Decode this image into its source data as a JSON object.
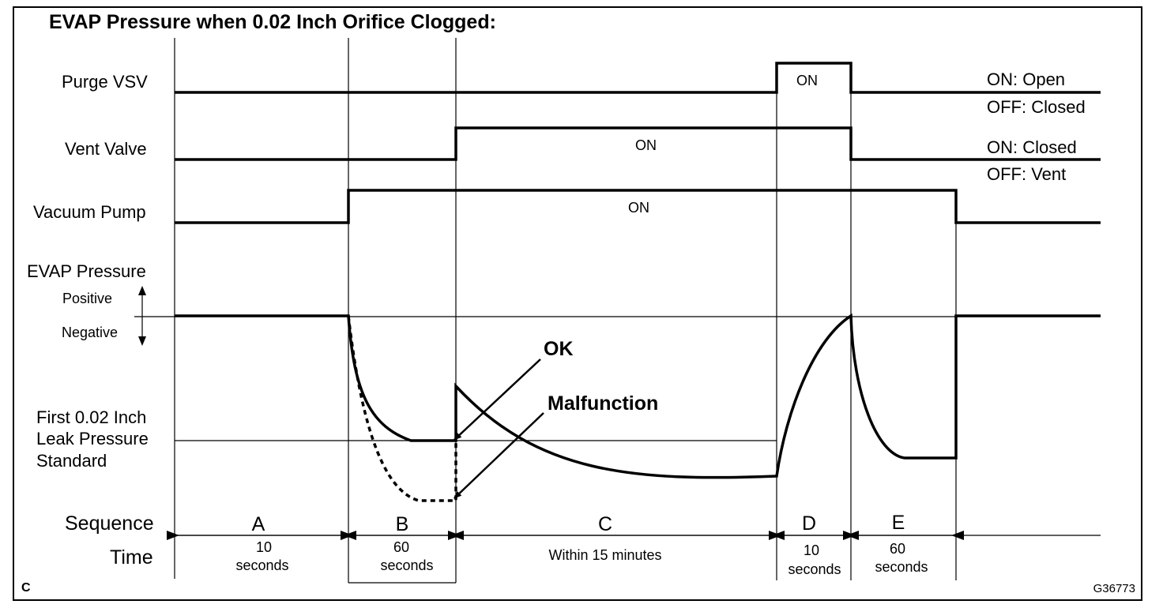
{
  "title": "EVAP Pressure when 0.02 Inch Orifice Clogged:",
  "signals": {
    "purge_vsv": {
      "label": "Purge VSV",
      "on_text": "ON",
      "state_on": "ON: Open",
      "state_off": "OFF: Closed"
    },
    "vent_valve": {
      "label": "Vent Valve",
      "on_text": "ON",
      "state_on": "ON: Closed",
      "state_off": "OFF: Vent"
    },
    "vacuum_pump": {
      "label": "Vacuum Pump",
      "on_text": "ON"
    },
    "evap_pressure": {
      "label": "EVAP Pressure",
      "positive": "Positive",
      "negative": "Negative"
    }
  },
  "standard_label": {
    "line1": "First 0.02 Inch",
    "line2": "Leak Pressure",
    "line3": "Standard"
  },
  "callouts": {
    "ok": "OK",
    "malfunction": "Malfunction"
  },
  "sequence_label": "Sequence",
  "time_label": "Time",
  "segments": [
    {
      "letter": "A",
      "time_line1": "10",
      "time_line2": "seconds"
    },
    {
      "letter": "B",
      "time_line1": "60",
      "time_line2": "seconds"
    },
    {
      "letter": "C",
      "time_line1": "Within 15 minutes",
      "time_line2": ""
    },
    {
      "letter": "D",
      "time_line1": "10",
      "time_line2": "seconds"
    },
    {
      "letter": "E",
      "time_line1": "60",
      "time_line2": "seconds"
    }
  ],
  "corner_letter": "C",
  "figure_code": "G36773"
}
